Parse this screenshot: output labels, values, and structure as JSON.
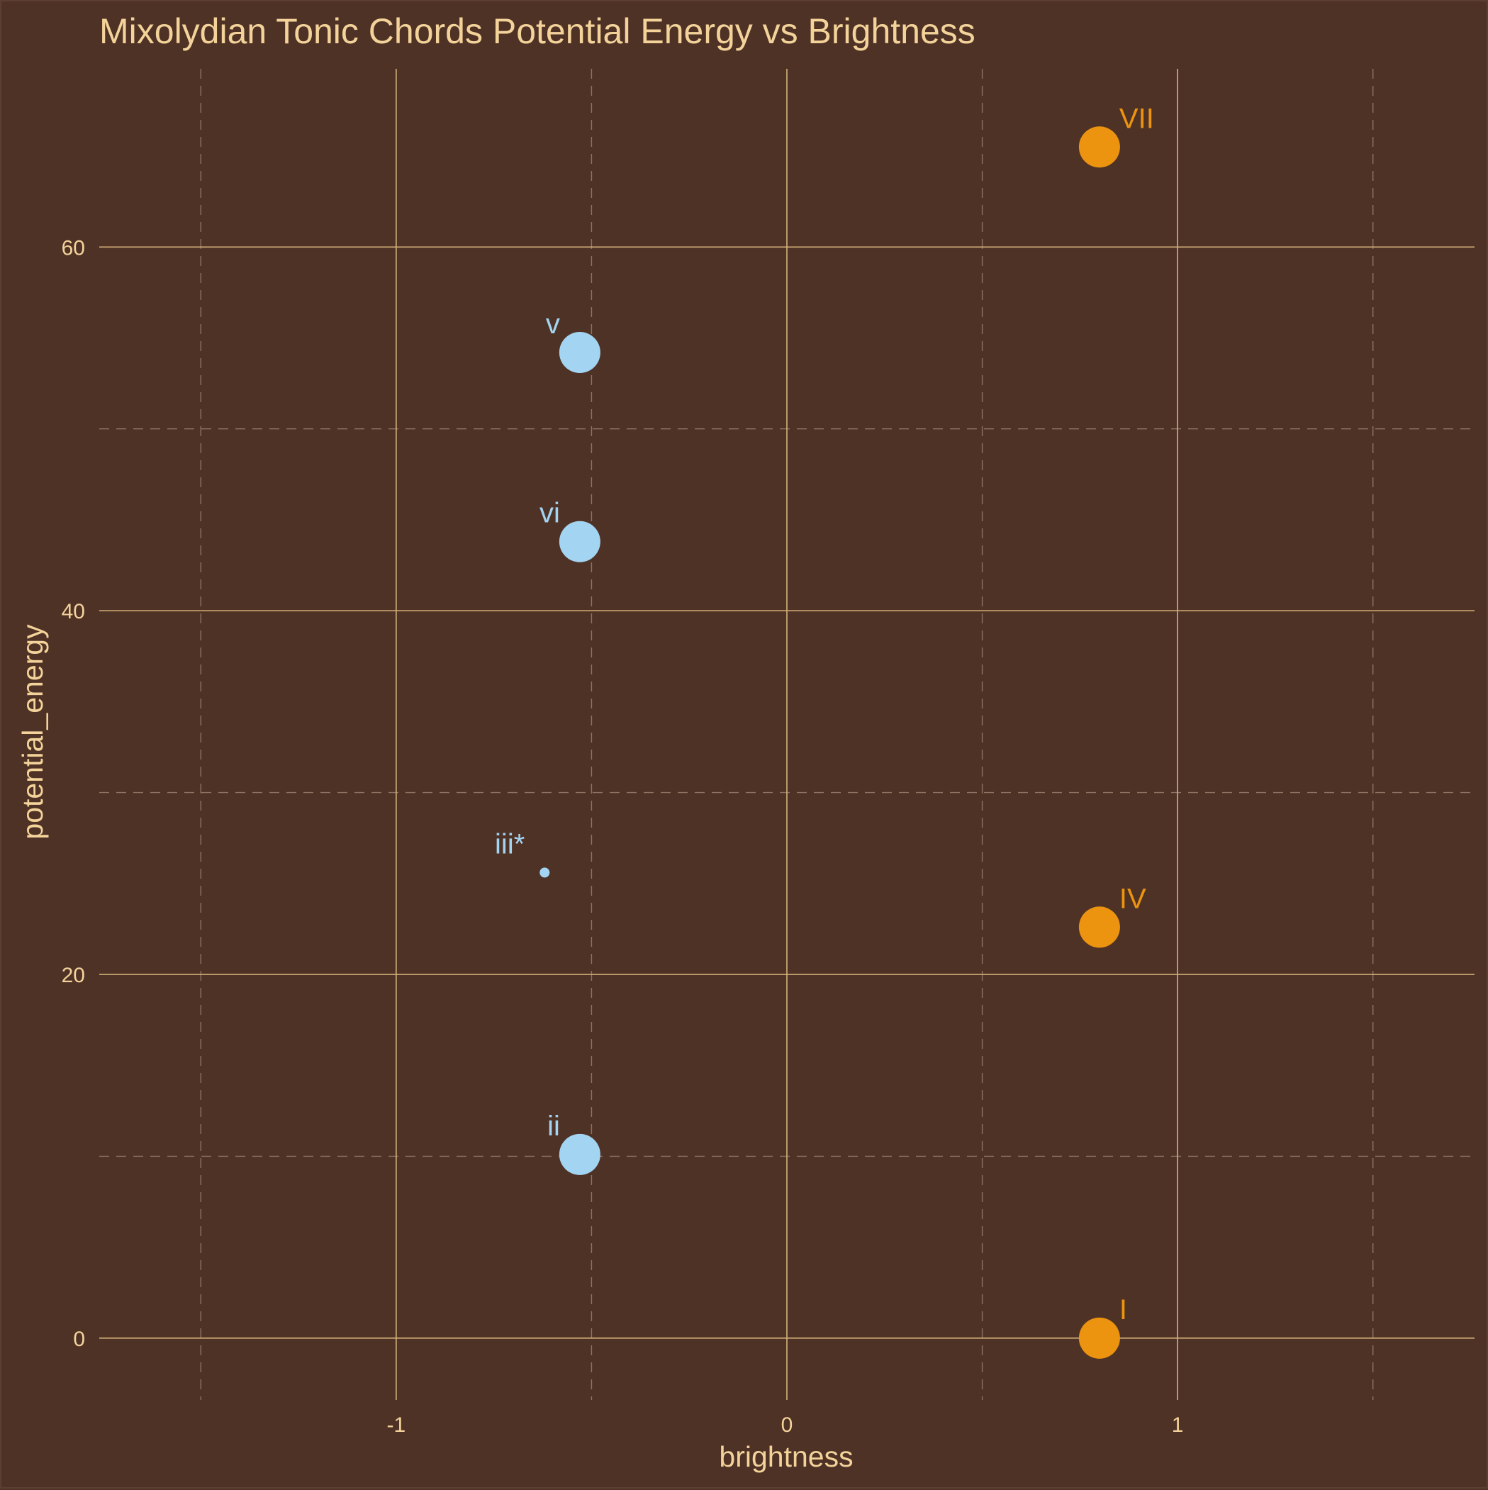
{
  "chart_data": {
    "type": "scatter",
    "title": "Mixolydian Tonic Chords Potential Energy vs Brightness",
    "xlabel": "brightness",
    "ylabel": "potential_energy",
    "xlim": [
      -1.76,
      1.76
    ],
    "ylim": [
      -3.4,
      69.8
    ],
    "x_ticks": [
      -1,
      0,
      1
    ],
    "x_tick_labels": [
      "-1",
      "0",
      "1"
    ],
    "y_ticks": [
      0,
      20,
      40,
      60
    ],
    "y_tick_labels": [
      "0",
      "20",
      "40",
      "60"
    ],
    "x_minor_ticks": [
      -1.5,
      -0.5,
      0.5,
      1.5
    ],
    "y_minor_ticks": [
      10,
      30,
      50
    ],
    "grid": true,
    "legend": "none",
    "colors": {
      "background": "#4f3226",
      "text": "#f3d39a",
      "major_grid": "#d4b27a",
      "minor_grid": "#8c7461",
      "bright_chords": "#ec9410",
      "dark_chords": "#a3d4f2"
    },
    "points": [
      {
        "label": "VII",
        "x": 0.8,
        "y": 65.5,
        "size": "large",
        "color": "#ec9410"
      },
      {
        "label": "v",
        "x": -0.53,
        "y": 54.2,
        "size": "large",
        "color": "#a3d4f2"
      },
      {
        "label": "vi",
        "x": -0.53,
        "y": 43.8,
        "size": "large",
        "color": "#a3d4f2"
      },
      {
        "label": "iii*",
        "x": -0.62,
        "y": 25.6,
        "size": "small",
        "color": "#a3d4f2"
      },
      {
        "label": "IV",
        "x": 0.8,
        "y": 22.6,
        "size": "large",
        "color": "#ec9410"
      },
      {
        "label": "ii",
        "x": -0.53,
        "y": 10.1,
        "size": "large",
        "color": "#a3d4f2"
      },
      {
        "label": "I",
        "x": 0.8,
        "y": 0,
        "size": "large",
        "color": "#ec9410"
      }
    ]
  }
}
